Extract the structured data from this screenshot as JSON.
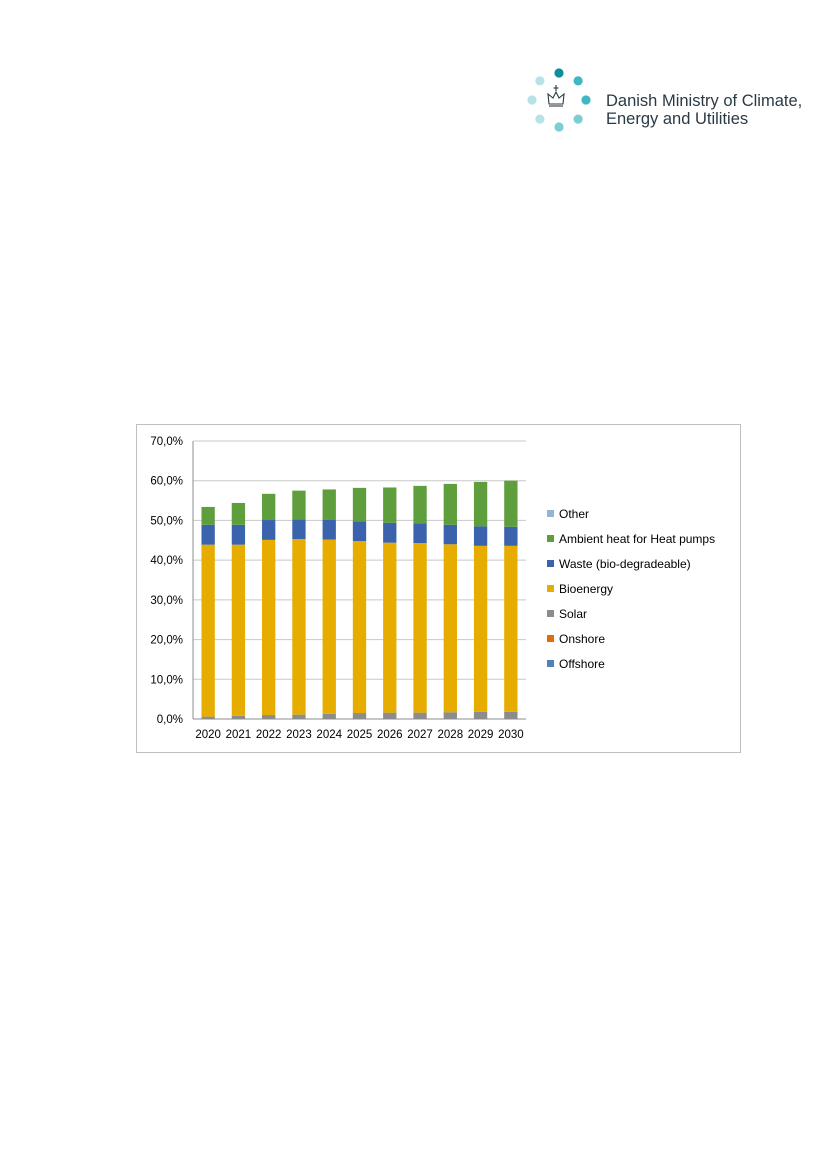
{
  "header": {
    "org_line1": "Danish Ministry of Climate,",
    "org_line2": "Energy and Utilities",
    "logo_icon": "crown-with-dot-ring-icon",
    "logo_colors": [
      "#0b8f9c",
      "#3fb8c4",
      "#7dcdd5",
      "#b7e3e7"
    ]
  },
  "chart_data": {
    "type": "bar",
    "stacked": true,
    "categories": [
      "2020",
      "2021",
      "2022",
      "2023",
      "2024",
      "2025",
      "2026",
      "2027",
      "2028",
      "2029",
      "2030"
    ],
    "ylim": [
      0,
      70
    ],
    "ytick_labels": [
      "0,0%",
      "10,0%",
      "20,0%",
      "30,0%",
      "40,0%",
      "50,0%",
      "60,0%",
      "70,0%"
    ],
    "ytick_values": [
      0,
      10,
      20,
      30,
      40,
      50,
      60,
      70
    ],
    "grid": true,
    "legend_position": "right",
    "series": [
      {
        "name": "Offshore",
        "color": "#4f81bd",
        "values": [
          0,
          0,
          0,
          0,
          0,
          0,
          0,
          0,
          0,
          0,
          0
        ]
      },
      {
        "name": "Onshore",
        "color": "#e36c0a",
        "values": [
          0,
          0,
          0,
          0,
          0,
          0,
          0,
          0,
          0,
          0,
          0
        ]
      },
      {
        "name": "Solar",
        "color": "#8c8c8c",
        "values": [
          0.6,
          0.8,
          1.0,
          1.1,
          1.3,
          1.5,
          1.6,
          1.6,
          1.7,
          1.8,
          1.8
        ]
      },
      {
        "name": "Bioenergy",
        "color": "#e6ad00",
        "values": [
          43.3,
          43.1,
          44.1,
          44.2,
          43.9,
          43.3,
          42.8,
          42.7,
          42.3,
          41.8,
          41.8
        ]
      },
      {
        "name": "Waste (bio-degradeable)",
        "color": "#3b63ad",
        "values": [
          5.0,
          5.0,
          5.0,
          5.0,
          5.0,
          5.0,
          5.0,
          5.0,
          4.9,
          4.9,
          4.8
        ]
      },
      {
        "name": "Ambient heat for Heat pumps",
        "color": "#5e9e3c",
        "values": [
          4.5,
          5.5,
          6.6,
          7.2,
          7.6,
          8.4,
          8.9,
          9.4,
          10.3,
          11.2,
          11.6
        ]
      },
      {
        "name": "Other",
        "color": "#95b3d7",
        "values": [
          0,
          0,
          0,
          0,
          0,
          0,
          0,
          0,
          0,
          0,
          0
        ]
      }
    ]
  }
}
